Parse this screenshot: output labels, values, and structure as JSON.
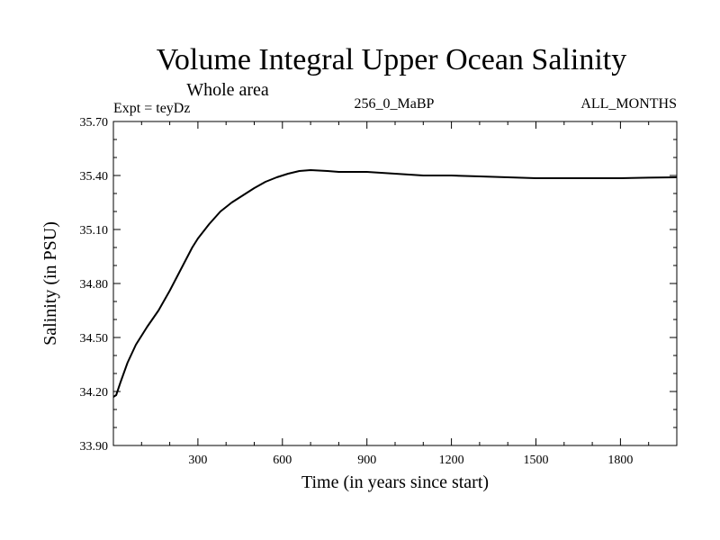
{
  "chart_data": {
    "type": "line",
    "title": "Volume Integral Upper Ocean Salinity",
    "subtitle": "Whole area",
    "annotations": {
      "left": "Expt = teyDz",
      "center": "256_0_MaBP",
      "right": "ALL_MONTHS"
    },
    "xlabel": "Time (in years since start)",
    "ylabel": "Salinity (in PSU)",
    "xlim": [
      0,
      2000
    ],
    "ylim": [
      33.9,
      35.7
    ],
    "xticks": [
      300,
      600,
      900,
      1200,
      1500,
      1800
    ],
    "xtick_labels": [
      "300",
      "600",
      "900",
      "1200",
      "1500",
      "1800"
    ],
    "yticks": [
      33.9,
      34.2,
      34.5,
      34.8,
      35.1,
      35.4,
      35.7
    ],
    "ytick_labels": [
      "33.90",
      "34.20",
      "34.50",
      "34.80",
      "35.10",
      "35.40",
      "35.70"
    ],
    "grid": false,
    "series": [
      {
        "name": "salinity",
        "color": "#000000",
        "x": [
          0,
          10,
          25,
          50,
          80,
          120,
          160,
          200,
          240,
          280,
          300,
          340,
          380,
          420,
          460,
          500,
          540,
          580,
          620,
          660,
          700,
          760,
          800,
          850,
          900,
          950,
          1000,
          1100,
          1200,
          1300,
          1400,
          1500,
          1600,
          1700,
          1800,
          1900,
          2000
        ],
        "y": [
          34.17,
          34.18,
          34.25,
          34.36,
          34.46,
          34.56,
          34.65,
          34.76,
          34.88,
          35.0,
          35.05,
          35.13,
          35.2,
          35.25,
          35.29,
          35.33,
          35.365,
          35.39,
          35.41,
          35.425,
          35.43,
          35.425,
          35.42,
          35.42,
          35.42,
          35.415,
          35.41,
          35.4,
          35.4,
          35.395,
          35.39,
          35.385,
          35.385,
          35.385,
          35.385,
          35.388,
          35.39
        ]
      }
    ]
  }
}
